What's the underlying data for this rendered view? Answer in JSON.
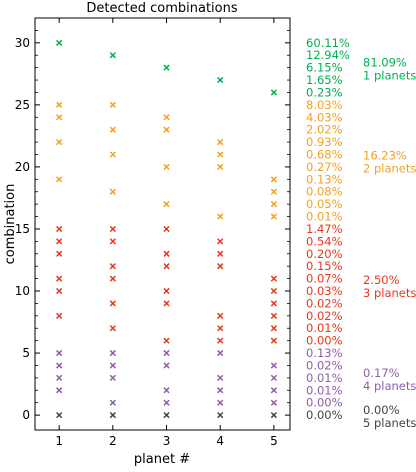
{
  "chart_data": {
    "type": "scatter",
    "title": "Detected combinations",
    "xlabel": "planet #",
    "ylabel": "combination",
    "xlim": [
      0.55,
      5.3
    ],
    "ylim": [
      -1.2,
      32
    ],
    "x_ticks": [
      "1",
      "2",
      "3",
      "4",
      "5"
    ],
    "y_ticks": [
      "0",
      "5",
      "10",
      "15",
      "20",
      "25",
      "30"
    ],
    "marker": "x",
    "grid": false,
    "series": [
      {
        "color": "#00b050",
        "group_percent": "81.09%",
        "group_label": "1 planets",
        "points": [
          [
            1,
            30
          ],
          [
            2,
            29
          ],
          [
            3,
            28
          ],
          [
            4,
            27
          ],
          [
            5,
            26
          ]
        ],
        "percentages": [
          {
            "y": 30,
            "label": "60.11%"
          },
          {
            "y": 29,
            "label": "12.94%"
          },
          {
            "y": 28,
            "label": "6.15%"
          },
          {
            "y": 27,
            "label": "1.65%"
          },
          {
            "y": 26,
            "label": "0.23%"
          }
        ]
      },
      {
        "color": "#f5a020",
        "group_percent": "16.23%",
        "group_label": "2 planets",
        "points": [
          [
            1,
            25
          ],
          [
            2,
            25
          ],
          [
            1,
            24
          ],
          [
            3,
            24
          ],
          [
            1,
            22
          ],
          [
            4,
            22
          ],
          [
            2,
            23
          ],
          [
            3,
            23
          ],
          [
            2,
            21
          ],
          [
            4,
            21
          ],
          [
            3,
            20
          ],
          [
            4,
            20
          ],
          [
            1,
            19
          ],
          [
            5,
            19
          ],
          [
            2,
            18
          ],
          [
            5,
            18
          ],
          [
            3,
            17
          ],
          [
            5,
            17
          ],
          [
            4,
            16
          ],
          [
            5,
            16
          ]
        ],
        "percentages": [
          {
            "y": 25,
            "label": "8.03%"
          },
          {
            "y": 24,
            "label": "4.03%"
          },
          {
            "y": 23,
            "label": "2.02%"
          },
          {
            "y": 22,
            "label": "0.93%"
          },
          {
            "y": 21,
            "label": "0.68%"
          },
          {
            "y": 20,
            "label": "0.27%"
          },
          {
            "y": 19,
            "label": "0.13%"
          },
          {
            "y": 18,
            "label": "0.08%"
          },
          {
            "y": 17,
            "label": "0.05%"
          },
          {
            "y": 16,
            "label": "0.01%"
          }
        ]
      },
      {
        "color": "#e8381c",
        "group_percent": "2.50%",
        "group_label": "3 planets",
        "points": [
          [
            1,
            15
          ],
          [
            2,
            15
          ],
          [
            3,
            15
          ],
          [
            1,
            14
          ],
          [
            2,
            14
          ],
          [
            4,
            14
          ],
          [
            1,
            13
          ],
          [
            3,
            13
          ],
          [
            4,
            13
          ],
          [
            2,
            12
          ],
          [
            3,
            12
          ],
          [
            4,
            12
          ],
          [
            1,
            11
          ],
          [
            2,
            11
          ],
          [
            5,
            11
          ],
          [
            1,
            10
          ],
          [
            3,
            10
          ],
          [
            5,
            10
          ],
          [
            2,
            9
          ],
          [
            3,
            9
          ],
          [
            5,
            9
          ],
          [
            1,
            8
          ],
          [
            4,
            8
          ],
          [
            5,
            8
          ],
          [
            2,
            7
          ],
          [
            4,
            7
          ],
          [
            5,
            7
          ],
          [
            3,
            6
          ],
          [
            4,
            6
          ],
          [
            5,
            6
          ]
        ],
        "percentages": [
          {
            "y": 15,
            "label": "1.47%"
          },
          {
            "y": 14,
            "label": "0.54%"
          },
          {
            "y": 13,
            "label": "0.20%"
          },
          {
            "y": 12,
            "label": "0.15%"
          },
          {
            "y": 11,
            "label": "0.07%"
          },
          {
            "y": 10,
            "label": "0.03%"
          },
          {
            "y": 9,
            "label": "0.02%"
          },
          {
            "y": 8,
            "label": "0.02%"
          },
          {
            "y": 7,
            "label": "0.01%"
          },
          {
            "y": 6,
            "label": "0.00%"
          }
        ]
      },
      {
        "color": "#8e5fa8",
        "group_percent": "0.17%",
        "group_label": "4 planets",
        "points": [
          [
            1,
            5
          ],
          [
            2,
            5
          ],
          [
            3,
            5
          ],
          [
            4,
            5
          ],
          [
            1,
            4
          ],
          [
            2,
            4
          ],
          [
            3,
            4
          ],
          [
            5,
            4
          ],
          [
            1,
            3
          ],
          [
            2,
            3
          ],
          [
            4,
            3
          ],
          [
            5,
            3
          ],
          [
            1,
            2
          ],
          [
            3,
            2
          ],
          [
            4,
            2
          ],
          [
            5,
            2
          ],
          [
            2,
            1
          ],
          [
            3,
            1
          ],
          [
            4,
            1
          ],
          [
            5,
            1
          ]
        ],
        "percentages": [
          {
            "y": 5,
            "label": "0.13%"
          },
          {
            "y": 4,
            "label": "0.02%"
          },
          {
            "y": 3,
            "label": "0.01%"
          },
          {
            "y": 2,
            "label": "0.01%"
          },
          {
            "y": 1,
            "label": "0.00%"
          }
        ]
      },
      {
        "color": "#444444",
        "group_percent": "0.00%",
        "group_label": "5 planets",
        "points": [
          [
            1,
            0
          ],
          [
            2,
            0
          ],
          [
            3,
            0
          ],
          [
            4,
            0
          ],
          [
            5,
            0
          ]
        ],
        "percentages": [
          {
            "y": 0,
            "label": "0.00%"
          }
        ]
      }
    ]
  }
}
